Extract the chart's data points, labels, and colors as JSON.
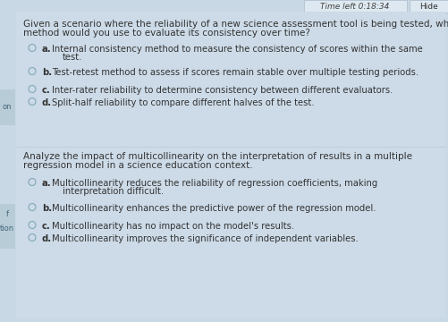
{
  "bg_color": "#c8d8e4",
  "panel_color": "#c8d8e4",
  "content_bg": "#cddbe8",
  "text_color": "#333333",
  "timer_text": "Time left 0:18:34",
  "hide_text": "Hide",
  "q1_text_line1": "Given a scenario where the reliability of a new science assessment tool is being tested, what",
  "q1_text_line2": "method would you use to evaluate its consistency over time?",
  "q1_options": [
    {
      "label": "a.",
      "text1": "Internal consistency method to measure the consistency of scores within the same",
      "text2": "test."
    },
    {
      "label": "b.",
      "text1": "Test-retest method to assess if scores remain stable over multiple testing periods.",
      "text2": ""
    },
    {
      "label": "c.",
      "text1": "Inter-rater reliability to determine consistency between different evaluators.",
      "text2": ""
    },
    {
      "label": "d.",
      "text1": "Split-half reliability to compare different halves of the test.",
      "text2": ""
    }
  ],
  "q2_text_line1": "Analyze the impact of multicollinearity on the interpretation of results in a multiple",
  "q2_text_line2": "regression model in a science education context.",
  "q2_options": [
    {
      "label": "a.",
      "text1": "Multicollinearity reduces the reliability of regression coefficients, making",
      "text2": "interpretation difficult."
    },
    {
      "label": "b.",
      "text1": "Multicollinearity enhances the predictive power of the regression model.",
      "text2": ""
    },
    {
      "label": "c.",
      "text1": "Multicollinearity has no impact on the model's results.",
      "text2": ""
    },
    {
      "label": "d.",
      "text1": "Multicollinearity improves the significance of independent variables.",
      "text2": ""
    }
  ],
  "left_tab1_label": "on",
  "left_tab2_label1": "f",
  "left_tab2_label2": "tion",
  "circle_color": "#8aabbd",
  "font_size_q": 7.5,
  "font_size_opt": 7.2,
  "font_size_header": 6.5,
  "font_size_tab": 6.0
}
